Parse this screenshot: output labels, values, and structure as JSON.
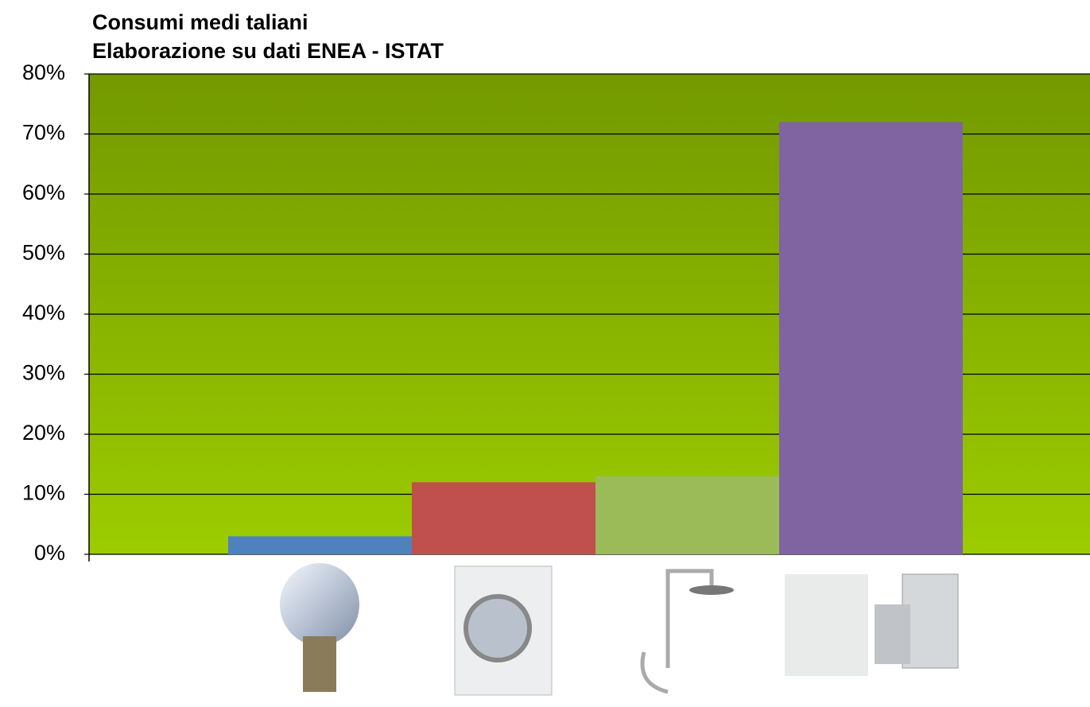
{
  "chart_data": {
    "type": "bar",
    "title": "Consumi medi taliani",
    "subtitle": "Elaborazione su dati ENEA - ISTAT",
    "categories": [
      null,
      null,
      null,
      null
    ],
    "values": [
      3,
      12,
      13,
      72
    ],
    "colors": [
      "#4f81bd",
      "#c0504d",
      "#9bbb59",
      "#8064a2"
    ],
    "ylim": [
      0,
      80
    ],
    "yticks": [
      {
        "value": 0,
        "label": "0%"
      },
      {
        "value": 10,
        "label": "10%"
      },
      {
        "value": 20,
        "label": "20%"
      },
      {
        "value": 30,
        "label": "30%"
      },
      {
        "value": 40,
        "label": "40%"
      },
      {
        "value": 50,
        "label": "50%"
      },
      {
        "value": 60,
        "label": "60%"
      },
      {
        "value": 70,
        "label": "70%"
      },
      {
        "value": 80,
        "label": "80%"
      }
    ],
    "grid": true
  }
}
